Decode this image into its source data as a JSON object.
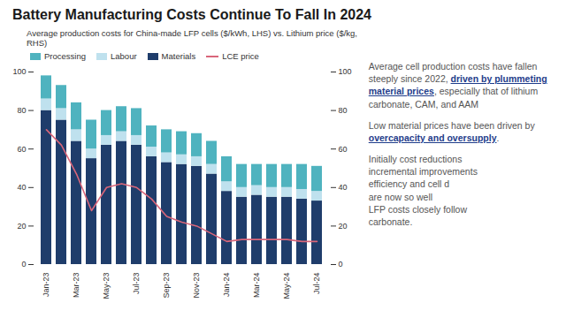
{
  "chart_data": {
    "type": "bar",
    "stacked": true,
    "title": "Battery Manufacturing Costs Continue To Fall In 2024",
    "subtitle": "Average production costs for China-made LFP cells ($/kWh, LHS) vs. Lithium price ($/kg, RHS)",
    "categories": [
      "Jan-23",
      null,
      "Mar-23",
      null,
      "May-23",
      null,
      "Jul-23",
      null,
      "Sep-23",
      null,
      "Nov-23",
      null,
      "Jan-24",
      null,
      "Mar-24",
      null,
      "May-24",
      null,
      "Jul-24"
    ],
    "series": [
      {
        "name": "Processing",
        "color": "#4fb3bf",
        "values": [
          12,
          12,
          14,
          15,
          13,
          13,
          14,
          11,
          12,
          12,
          12,
          12,
          13,
          12,
          11,
          12,
          12,
          13,
          13
        ]
      },
      {
        "name": "Labour",
        "color": "#bfe1ee",
        "values": [
          6,
          6,
          6,
          5,
          5,
          5,
          5,
          5,
          5,
          5,
          5,
          5,
          5,
          5,
          5,
          5,
          5,
          5,
          5
        ]
      },
      {
        "name": "Materials",
        "color": "#1f3d6b",
        "values": [
          80,
          75,
          64,
          55,
          62,
          64,
          62,
          56,
          53,
          52,
          51,
          47,
          38,
          35,
          36,
          35,
          35,
          34,
          33
        ]
      },
      {
        "name": "LCE price",
        "type": "line",
        "axis": "y2",
        "color": "#d9667a",
        "values": [
          70,
          62,
          47,
          28,
          40,
          42,
          40,
          34,
          25,
          22,
          20,
          16,
          12,
          13,
          13,
          13,
          13,
          12,
          12
        ]
      }
    ],
    "ylim": [
      0,
      100
    ],
    "yticks": [
      0,
      20,
      40,
      60,
      80,
      100
    ],
    "y2lim": [
      0,
      100
    ],
    "y2ticks": [
      0,
      20,
      40,
      60,
      80,
      100
    ],
    "legend": "top",
    "grid": false
  },
  "text_panel": {
    "paragraphs": [
      [
        {
          "text": "Average cell production costs have fallen steeply since 2022, ",
          "highlight": false
        },
        {
          "text": "driven by plummeting material prices",
          "highlight": true
        },
        {
          "text": ", especially that of lithium carbonate, CAM, and AAM",
          "highlight": false
        }
      ],
      [
        {
          "text": "Low material prices have been driven by ",
          "highlight": false
        },
        {
          "text": "overcapacity and oversupply",
          "highlight": true
        },
        {
          "text": ".",
          "highlight": false
        }
      ],
      [
        {
          "text": "Initially cost reductions",
          "highlight": false
        },
        {
          "text": "incremental improvements",
          "highlight": false
        },
        {
          "text": "efficiency and cell d",
          "highlight": false
        },
        {
          "text": "are now so well",
          "highlight": false
        },
        {
          "text": "LFP costs closely follow",
          "highlight": false
        },
        {
          "text": "carbonate.",
          "highlight": false
        }
      ]
    ]
  }
}
